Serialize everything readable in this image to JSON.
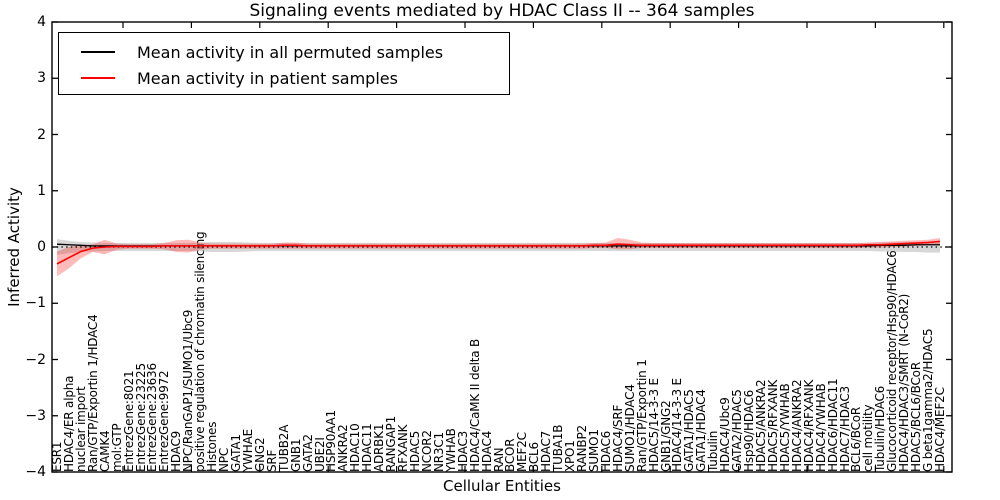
{
  "title": "Signaling events mediated by HDAC Class II -- 364 samples",
  "legend": {
    "position": "upper left",
    "items": [
      {
        "label": "Mean activity in all permuted samples",
        "color": "#000000"
      },
      {
        "label": "Mean activity in patient samples",
        "color": "#ff0000"
      }
    ]
  },
  "chart_data": {
    "type": "line",
    "title": "Signaling events mediated by HDAC Class II -- 364 samples",
    "xlabel": "Cellular Entities",
    "ylabel": "Inferred Activity",
    "ylim": [
      -4,
      4
    ],
    "grid": false,
    "n_points": 75,
    "yticks": [
      4,
      3,
      2,
      1,
      0,
      -1,
      -2,
      -3,
      -4
    ],
    "ytick_labels": [
      "4",
      "3",
      "2",
      "1",
      "0",
      "−1",
      "−2",
      "−3",
      "−4"
    ],
    "zero_line": {
      "style": "dotted",
      "color": "#000000",
      "y": 0
    },
    "categories": [
      "ESR1",
      "HDAC4/ER alpha",
      "nuclear import",
      "Ran/GTP/Exportin 1/HDAC4",
      "CAMK4",
      "mol:GTP",
      "EntrezGene:8021",
      "EntrezGene:23225",
      "EntrezGene:23636",
      "EntrezGene:9972",
      "HDAC9",
      "NPC/RanGAP1/SUMO1/Ubc9",
      "positive regulation of chromatin silencing",
      "Histones",
      "NPC",
      "GATA1",
      "YWHAE",
      "GNG2",
      "SRF",
      "TUBB2A",
      "GNB1",
      "GATA2",
      "UBE2I",
      "HSP90AA1",
      "ANKRA2",
      "HDAC10",
      "HDAC11",
      "ADRBK1",
      "RANGAP1",
      "RFXANK",
      "HDAC5",
      "NCOR2",
      "NR3C1",
      "YWHAB",
      "HDAC3",
      "HDAC4/CaMK II delta B",
      "HDAC4",
      "RAN",
      "BCOR",
      "MEF2C",
      "BCL6",
      "HDAC7",
      "TUBA1B",
      "XPO1",
      "RANBP2",
      "SUMO1",
      "HDAC6",
      "HDAC4/SRF",
      "SUMO1/HDAC4",
      "Ran/GTP/Exportin 1",
      "HDAC5/14-3-3 E",
      "GNB1/GNG2",
      "HDAC4/14-3-3 E",
      "GATA1/HDAC5",
      "GATA1/HDAC4",
      "Tubulin",
      "HDAC4/Ubc9",
      "GATA2/HDAC5",
      "Hsp90/HDAC6",
      "HDAC5/ANKRA2",
      "HDAC5/RFXANK",
      "HDAC5/YWHAB",
      "HDAC4/ANKRA2",
      "HDAC4/RFXANK",
      "HDAC4/YWHAB",
      "HDAC6/HDAC11",
      "HDAC7/HDAC3",
      "BCL6/BCoR",
      "cell motility",
      "Tubulin/HDAC6",
      "Glucocorticoid receptor/Hsp90/HDAC6",
      "HDAC4/HDAC3/SMRT (N-CoR2)",
      "HDAC5/BCL6/BCoR",
      "G beta1gamma2/HDAC5",
      "HDAC4/MEF2C"
    ],
    "series": [
      {
        "name": "Mean activity in all permuted samples",
        "color": "#000000",
        "width": 1.3,
        "values": [
          0.05,
          0.04,
          0.03,
          0.02,
          0.02,
          0.02,
          0.02,
          0.02,
          0.02,
          0.02,
          0.02,
          0.02,
          0.02,
          0.02,
          0.02,
          0.02,
          0.02,
          0.02,
          0.02,
          0.02,
          0.02,
          0.02,
          0.02,
          0.02,
          0.02,
          0.02,
          0.02,
          0.02,
          0.02,
          0.02,
          0.02,
          0.02,
          0.02,
          0.02,
          0.02,
          0.02,
          0.02,
          0.02,
          0.02,
          0.02,
          0.02,
          0.02,
          0.02,
          0.02,
          0.02,
          0.02,
          0.02,
          0.02,
          0.02,
          0.02,
          0.02,
          0.02,
          0.02,
          0.02,
          0.02,
          0.02,
          0.02,
          0.02,
          0.02,
          0.02,
          0.02,
          0.02,
          0.02,
          0.02,
          0.02,
          0.02,
          0.02,
          0.02,
          0.02,
          0.03,
          0.03,
          0.03,
          0.04,
          0.04,
          0.04
        ]
      },
      {
        "name": "Mean activity in patient samples",
        "color": "#ff0000",
        "width": 1.6,
        "values": [
          -0.3,
          -0.19,
          -0.08,
          -0.02,
          0.0,
          0.01,
          0.01,
          0.01,
          0.01,
          0.02,
          0.02,
          0.02,
          0.02,
          0.02,
          0.02,
          0.02,
          0.02,
          0.02,
          0.02,
          0.03,
          0.03,
          0.02,
          0.02,
          0.02,
          0.02,
          0.02,
          0.02,
          0.02,
          0.02,
          0.02,
          0.02,
          0.02,
          0.02,
          0.02,
          0.02,
          0.02,
          0.02,
          0.02,
          0.02,
          0.02,
          0.02,
          0.02,
          0.02,
          0.02,
          0.02,
          0.03,
          0.03,
          0.05,
          0.04,
          0.03,
          0.03,
          0.03,
          0.03,
          0.03,
          0.03,
          0.03,
          0.03,
          0.03,
          0.03,
          0.03,
          0.03,
          0.03,
          0.03,
          0.03,
          0.03,
          0.03,
          0.03,
          0.03,
          0.04,
          0.04,
          0.05,
          0.06,
          0.07,
          0.08,
          0.1
        ]
      }
    ],
    "bands": [
      {
        "name": "permuted-range",
        "color": "#b0b0b0",
        "opacity": 0.5,
        "hi": [
          0.14,
          0.11,
          0.09,
          0.08,
          0.07,
          0.07,
          0.07,
          0.07,
          0.07,
          0.07,
          0.07,
          0.07,
          0.08,
          0.09,
          0.09,
          0.09,
          0.08,
          0.07,
          0.07,
          0.07,
          0.07,
          0.07,
          0.07,
          0.07,
          0.07,
          0.07,
          0.07,
          0.07,
          0.07,
          0.07,
          0.07,
          0.07,
          0.07,
          0.07,
          0.07,
          0.07,
          0.07,
          0.07,
          0.07,
          0.07,
          0.07,
          0.07,
          0.07,
          0.07,
          0.07,
          0.07,
          0.07,
          0.07,
          0.07,
          0.07,
          0.07,
          0.07,
          0.07,
          0.07,
          0.07,
          0.07,
          0.07,
          0.07,
          0.07,
          0.07,
          0.07,
          0.07,
          0.07,
          0.07,
          0.07,
          0.07,
          0.07,
          0.07,
          0.07,
          0.08,
          0.08,
          0.09,
          0.09,
          0.1,
          0.1
        ],
        "lo": [
          -0.14,
          -0.11,
          -0.09,
          -0.08,
          -0.07,
          -0.07,
          -0.07,
          -0.07,
          -0.07,
          -0.07,
          -0.07,
          -0.07,
          -0.08,
          -0.09,
          -0.09,
          -0.09,
          -0.08,
          -0.07,
          -0.07,
          -0.07,
          -0.07,
          -0.07,
          -0.07,
          -0.07,
          -0.07,
          -0.07,
          -0.07,
          -0.07,
          -0.07,
          -0.07,
          -0.07,
          -0.07,
          -0.07,
          -0.07,
          -0.07,
          -0.07,
          -0.07,
          -0.07,
          -0.07,
          -0.07,
          -0.07,
          -0.07,
          -0.07,
          -0.07,
          -0.07,
          -0.07,
          -0.07,
          -0.07,
          -0.07,
          -0.07,
          -0.07,
          -0.07,
          -0.07,
          -0.07,
          -0.07,
          -0.07,
          -0.07,
          -0.07,
          -0.07,
          -0.07,
          -0.07,
          -0.07,
          -0.07,
          -0.07,
          -0.07,
          -0.07,
          -0.07,
          -0.07,
          -0.07,
          -0.08,
          -0.08,
          -0.09,
          -0.09,
          -0.1,
          -0.1
        ]
      },
      {
        "name": "patient-range",
        "color": "#ff0000",
        "opacity": 0.27,
        "hi": [
          -0.08,
          0.0,
          0.03,
          0.05,
          0.13,
          0.06,
          0.05,
          0.05,
          0.05,
          0.07,
          0.12,
          0.13,
          0.08,
          0.06,
          0.06,
          0.06,
          0.06,
          0.06,
          0.06,
          0.08,
          0.08,
          0.06,
          0.06,
          0.06,
          0.06,
          0.06,
          0.06,
          0.06,
          0.06,
          0.06,
          0.06,
          0.06,
          0.06,
          0.06,
          0.06,
          0.06,
          0.06,
          0.06,
          0.06,
          0.06,
          0.06,
          0.06,
          0.06,
          0.06,
          0.06,
          0.07,
          0.08,
          0.16,
          0.13,
          0.08,
          0.07,
          0.07,
          0.07,
          0.07,
          0.07,
          0.07,
          0.07,
          0.07,
          0.07,
          0.07,
          0.07,
          0.07,
          0.07,
          0.07,
          0.07,
          0.07,
          0.07,
          0.07,
          0.08,
          0.09,
          0.1,
          0.11,
          0.12,
          0.13,
          0.16
        ],
        "lo": [
          -0.52,
          -0.38,
          -0.2,
          -0.09,
          -0.13,
          -0.05,
          -0.03,
          -0.03,
          -0.03,
          -0.04,
          -0.09,
          -0.1,
          -0.05,
          -0.03,
          -0.03,
          -0.03,
          -0.03,
          -0.03,
          -0.03,
          -0.03,
          -0.03,
          -0.03,
          -0.03,
          -0.03,
          -0.03,
          -0.03,
          -0.03,
          -0.03,
          -0.03,
          -0.03,
          -0.03,
          -0.03,
          -0.03,
          -0.03,
          -0.03,
          -0.03,
          -0.03,
          -0.03,
          -0.03,
          -0.03,
          -0.03,
          -0.03,
          -0.03,
          -0.03,
          -0.03,
          -0.02,
          -0.02,
          -0.04,
          -0.04,
          -0.02,
          -0.02,
          -0.02,
          -0.02,
          -0.02,
          -0.02,
          -0.02,
          -0.02,
          -0.02,
          -0.02,
          -0.02,
          -0.02,
          -0.02,
          -0.02,
          -0.02,
          -0.02,
          -0.02,
          -0.02,
          -0.02,
          -0.01,
          -0.01,
          0.0,
          0.01,
          0.02,
          0.03,
          0.04
        ]
      }
    ]
  }
}
